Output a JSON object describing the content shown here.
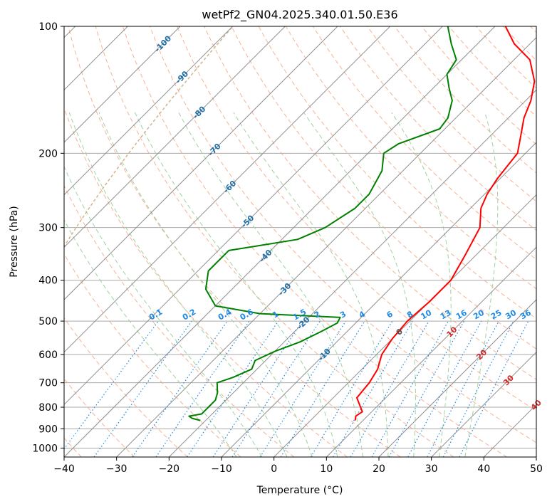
{
  "chart_data": {
    "type": "line",
    "title": "wetPf2_GN04.2025.340.01.50.E36",
    "xlabel": "Temperature (°C)",
    "ylabel": "Pressure (hPa)",
    "xlim": [
      -40,
      50
    ],
    "ylim": [
      1050,
      100
    ],
    "y_scale": "log",
    "grid": true,
    "x_ticks": [
      -40,
      -30,
      -20,
      -10,
      0,
      10,
      20,
      30,
      40,
      50
    ],
    "y_ticks": [
      100,
      200,
      300,
      400,
      500,
      600,
      700,
      800,
      900,
      1000
    ],
    "skew_degrees": 45,
    "series": [
      {
        "color": "#ff0000",
        "values": [
          [
            8.5,
            860
          ],
          [
            7.8,
            840
          ],
          [
            8.2,
            820
          ],
          [
            7.0,
            800
          ],
          [
            4.5,
            760
          ],
          [
            4.0,
            700
          ],
          [
            3.0,
            650
          ],
          [
            1.0,
            600
          ],
          [
            0.0,
            550
          ],
          [
            -0.5,
            500
          ],
          [
            0.0,
            450
          ],
          [
            0.0,
            400
          ],
          [
            -2.0,
            350
          ],
          [
            -4.5,
            300
          ],
          [
            -8.0,
            270
          ],
          [
            -9.5,
            250
          ],
          [
            -10.5,
            230
          ],
          [
            -11.5,
            200
          ],
          [
            -14.5,
            180
          ],
          [
            -17.0,
            165
          ],
          [
            -19.0,
            150
          ],
          [
            -22.0,
            135
          ],
          [
            -27.0,
            120
          ],
          [
            -33.0,
            110
          ],
          [
            -38.0,
            100
          ]
        ]
      },
      {
        "color": "#008000",
        "values": [
          [
            -21.0,
            860
          ],
          [
            -23.0,
            850
          ],
          [
            -24.0,
            840
          ],
          [
            -22.0,
            830
          ],
          [
            -22.0,
            810
          ],
          [
            -22.0,
            800
          ],
          [
            -22.0,
            770
          ],
          [
            -23.0,
            740
          ],
          [
            -25.0,
            700
          ],
          [
            -23.0,
            680
          ],
          [
            -21.0,
            650
          ],
          [
            -22.0,
            620
          ],
          [
            -20.0,
            590
          ],
          [
            -17.0,
            560
          ],
          [
            -15.0,
            530
          ],
          [
            -13.5,
            505
          ],
          [
            -14.0,
            490
          ],
          [
            -30.0,
            480
          ],
          [
            -40.0,
            460
          ],
          [
            -45.0,
            420
          ],
          [
            -48.0,
            380
          ],
          [
            -48.0,
            340
          ],
          [
            -37.0,
            320
          ],
          [
            -34.0,
            300
          ],
          [
            -32.0,
            270
          ],
          [
            -32.0,
            250
          ],
          [
            -34.0,
            220
          ],
          [
            -37.0,
            200
          ],
          [
            -36.0,
            190
          ],
          [
            -31.0,
            175
          ],
          [
            -31.5,
            165
          ],
          [
            -34.0,
            150
          ],
          [
            -37.0,
            140
          ],
          [
            -40.0,
            130
          ],
          [
            -41.0,
            120
          ],
          [
            -45.0,
            110
          ],
          [
            -49.0,
            100
          ]
        ]
      }
    ],
    "isotherm_labels": [
      "-100",
      "-90",
      "-80",
      "-70",
      "-60",
      "-50",
      "-40",
      "-30",
      "-20",
      "-10",
      "0",
      "10",
      "20",
      "30",
      "40"
    ],
    "mixing_ratio_labels": [
      "0.1",
      "0.2",
      "0.4",
      "0.6",
      "1",
      "1.5",
      "2",
      "3",
      "4",
      "6",
      "8",
      "10",
      "13",
      "16",
      "20",
      "25",
      "30",
      "36"
    ],
    "colors": {
      "temperature": "#ff0000",
      "dewpoint": "#008000",
      "isotherm_label_cold": "#1f6fa8",
      "isotherm_label_warm": "#d62728",
      "isotherm_label_zero": "#555555",
      "mixing_ratio": "#1e88e5",
      "dry_adiabat": "#f4a582",
      "moist_adiabat": "#9fd39f",
      "grid": "#a9a9a9",
      "isotherm_line": "#909090",
      "lcl_curve": "#d2b48c"
    }
  }
}
